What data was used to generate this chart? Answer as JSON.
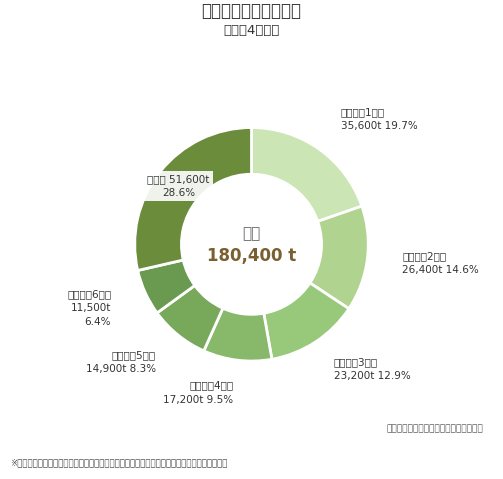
{
  "title": "＜冬レタスの収穫量＞",
  "subtitle": "（令和4年産）",
  "center_label": "全国",
  "center_value": "180,400 t",
  "source_note": "資料：農林水産省「野菜生産出荷統計」",
  "footnote": "※データは単位未満で四捨五入しているため、合計と内訳の計が一致しない場合があります。",
  "segments": [
    {
      "label": "茨城県（1位）",
      "val_str": "35,600t 19.7%",
      "pct": 19.7,
      "color": "#cce5b4"
    },
    {
      "label": "長崎県（2位）",
      "val_str": "26,400t 14.6%",
      "pct": 14.6,
      "color": "#b0d490"
    },
    {
      "label": "静岡県（3位）",
      "val_str": "23,200t 12.9%",
      "pct": 12.9,
      "color": "#98c87a"
    },
    {
      "label": "兵庫県（4位）",
      "val_str": "17,200t 9.5%",
      "pct": 9.5,
      "color": "#88b86a"
    },
    {
      "label": "熊本県（5位）",
      "val_str": "14,900t 8.3%",
      "pct": 8.3,
      "color": "#78a85a"
    },
    {
      "label": "香川県（6位）",
      "val_str": "11,500t\n6.4%",
      "pct": 6.4,
      "color": "#6a9a50"
    },
    {
      "label": "その他",
      "val_str": "51,600t\n28.6%",
      "pct": 28.6,
      "color": "#6b8c3a"
    }
  ],
  "start_angle": 90,
  "bg_color": "#ffffff",
  "title_color": "#333333",
  "label_color": "#333333",
  "center_label_color": "#666666",
  "center_value_color": "#7a6030"
}
